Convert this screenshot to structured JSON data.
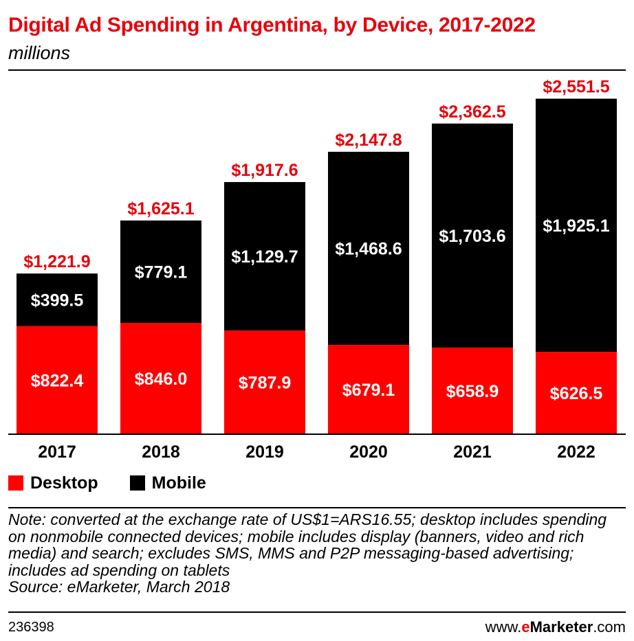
{
  "header": {
    "title": "Digital Ad Spending in Argentina, by Device, 2017-2022",
    "subtitle": "millions"
  },
  "colors": {
    "desktop": "#ff0000",
    "mobile": "#000000",
    "total_label": "#e8000b"
  },
  "chart_data": {
    "type": "bar",
    "stacked": true,
    "categories": [
      "2017",
      "2018",
      "2019",
      "2020",
      "2021",
      "2022"
    ],
    "series": [
      {
        "name": "Desktop",
        "values": [
          822.4,
          846.0,
          787.9,
          679.1,
          658.9,
          626.5
        ],
        "labels": [
          "$822.4",
          "$846.0",
          "$787.9",
          "$679.1",
          "$658.9",
          "$626.5"
        ]
      },
      {
        "name": "Mobile",
        "values": [
          399.5,
          779.1,
          1129.7,
          1468.6,
          1703.6,
          1925.1
        ],
        "labels": [
          "$399.5",
          "$779.1",
          "$1,129.7",
          "$1,468.6",
          "$1,703.6",
          "$1,925.1"
        ]
      }
    ],
    "totals": [
      1221.9,
      1625.1,
      1917.6,
      2147.8,
      2362.5,
      2551.5
    ],
    "total_labels": [
      "$1,221.9",
      "$1,625.1",
      "$1,917.6",
      "$2,147.8",
      "$2,362.5",
      "$2,551.5"
    ],
    "ylim": [
      0,
      2800
    ],
    "grid": false,
    "legend_position": "bottom-left"
  },
  "legend": {
    "desktop": "Desktop",
    "mobile": "Mobile"
  },
  "note": "Note: converted at the exchange rate of US$1=ARS16.55; desktop includes spending on nonmobile connected devices; mobile includes display (banners, video and rich media) and search; excludes SMS, MMS and P2P messaging-based advertising; includes ad spending on tablets",
  "source": "Source: eMarketer, March 2018",
  "footer": {
    "chart_id": "236398",
    "brand_prefix": "www.",
    "brand_e": "e",
    "brand_name": "Marketer",
    "brand_suffix": ".com"
  }
}
